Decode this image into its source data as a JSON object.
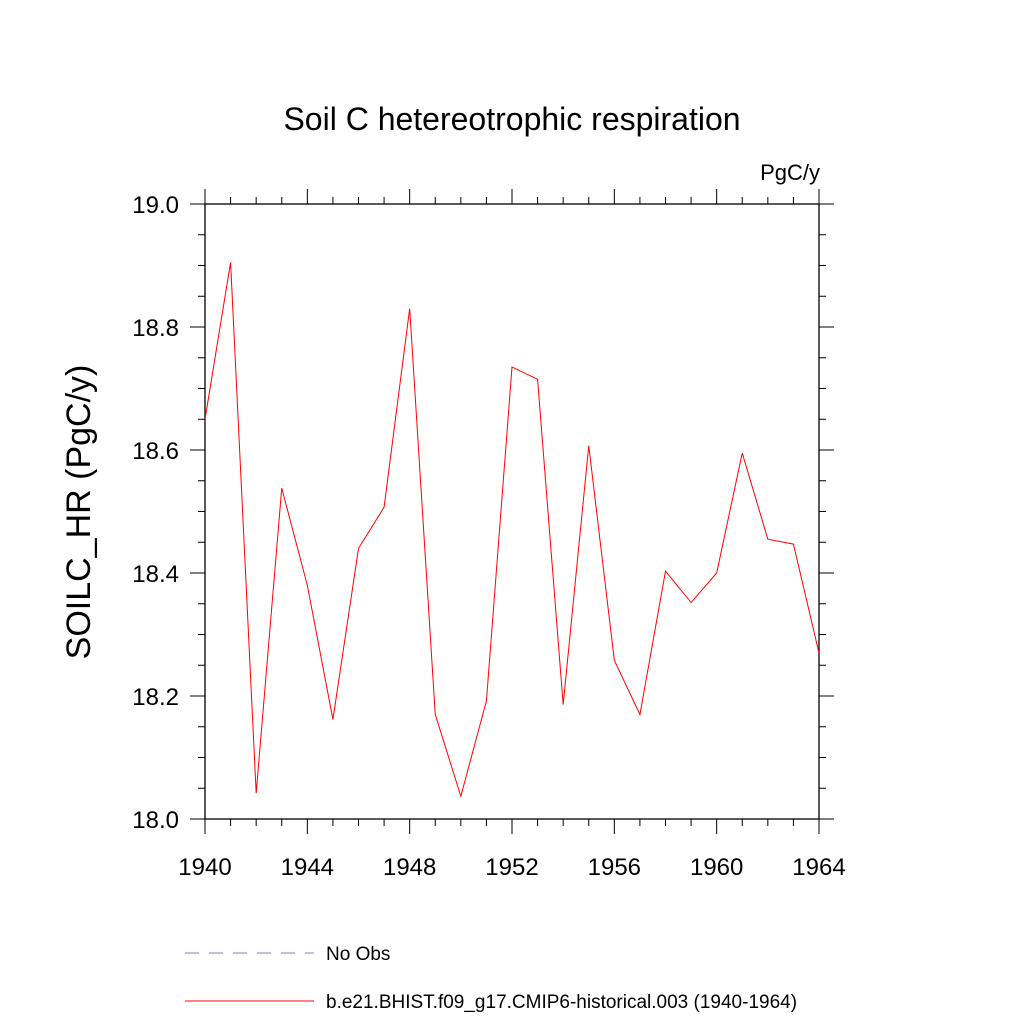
{
  "chart_data": {
    "type": "line",
    "title": "Soil C hetereotrophic respiration",
    "units_label": "PgC/y",
    "xlabel": "",
    "ylabel": "SOILC_HR  (PgC/y)",
    "xlim": [
      1940,
      1964
    ],
    "ylim": [
      18.0,
      19.0
    ],
    "x_ticks": [
      1940,
      1944,
      1948,
      1952,
      1956,
      1960,
      1964
    ],
    "x_tick_labels": [
      "1940",
      "1944",
      "1948",
      "1952",
      "1956",
      "1960",
      "1964"
    ],
    "y_ticks": [
      18.0,
      18.2,
      18.4,
      18.6,
      18.8,
      19.0
    ],
    "y_tick_labels": [
      "18.0",
      "18.2",
      "18.4",
      "18.6",
      "18.8",
      "19.0"
    ],
    "grid": false,
    "series": [
      {
        "name": "b.e21.BHIST.f09_g17.CMIP6-historical.003 (1940-1964)",
        "color": "#ff0000",
        "style": "solid",
        "x": [
          1940,
          1941,
          1942,
          1943,
          1944,
          1945,
          1946,
          1947,
          1948,
          1949,
          1950,
          1951,
          1952,
          1953,
          1954,
          1955,
          1956,
          1957,
          1958,
          1959,
          1960,
          1961,
          1962,
          1963,
          1964
        ],
        "values": [
          18.65,
          18.905,
          18.042,
          18.538,
          18.38,
          18.162,
          18.44,
          18.507,
          18.83,
          18.17,
          18.037,
          18.192,
          18.735,
          18.715,
          18.186,
          18.607,
          18.258,
          18.17,
          18.403,
          18.352,
          18.4,
          18.595,
          18.455,
          18.447,
          18.27
        ]
      }
    ],
    "legend": [
      {
        "label": "No Obs",
        "color": "#8080c0",
        "style": "dashed"
      },
      {
        "label": "b.e21.BHIST.f09_g17.CMIP6-historical.003 (1940-1964)",
        "color": "#ff0000",
        "style": "solid"
      }
    ],
    "legend_placement": "bottom"
  }
}
